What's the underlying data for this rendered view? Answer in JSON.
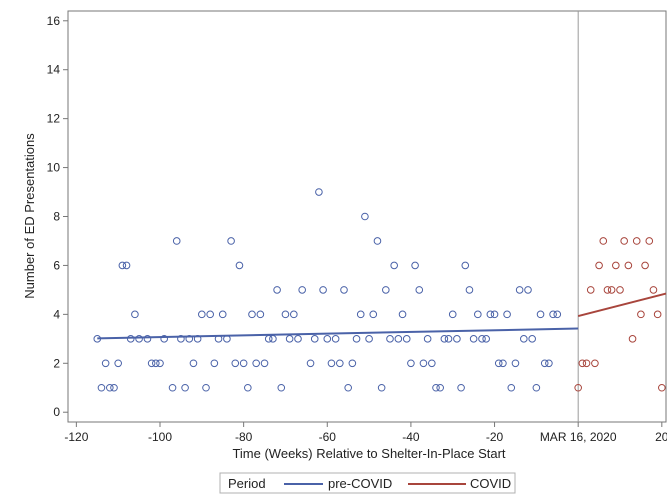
{
  "chart_data": {
    "type": "scatter",
    "xlabel": "Time (Weeks) Relative to Shelter-In-Place Start",
    "ylabel": "Number of ED Presentations",
    "xlim": [
      -122,
      21
    ],
    "ylim": [
      -0.4,
      16.4
    ],
    "xticks": [
      {
        "value": -120,
        "label": "-120"
      },
      {
        "value": -100,
        "label": "-100"
      },
      {
        "value": -80,
        "label": "-80"
      },
      {
        "value": -60,
        "label": "-60"
      },
      {
        "value": -40,
        "label": "-40"
      },
      {
        "value": -20,
        "label": "-20"
      },
      {
        "value": 0,
        "label": "MAR 16, 2020"
      },
      {
        "value": 20,
        "label": "20"
      }
    ],
    "yticks": [
      0,
      2,
      4,
      6,
      8,
      10,
      12,
      14,
      16
    ],
    "reference_line_x": 0,
    "legend": {
      "title": "Period",
      "position": "bottom-center"
    },
    "series": [
      {
        "name": "pre-COVID",
        "color": "#4a62a8",
        "points": [
          [
            -115,
            3
          ],
          [
            -114,
            1
          ],
          [
            -113,
            2
          ],
          [
            -112,
            1
          ],
          [
            -111,
            1
          ],
          [
            -110,
            2
          ],
          [
            -109,
            6
          ],
          [
            -108,
            6
          ],
          [
            -107,
            3
          ],
          [
            -106,
            4
          ],
          [
            -105,
            3
          ],
          [
            -103,
            3
          ],
          [
            -102,
            2
          ],
          [
            -101,
            2
          ],
          [
            -100,
            2
          ],
          [
            -99,
            3
          ],
          [
            -97,
            1
          ],
          [
            -96,
            7
          ],
          [
            -95,
            3
          ],
          [
            -94,
            1
          ],
          [
            -93,
            3
          ],
          [
            -92,
            2
          ],
          [
            -91,
            3
          ],
          [
            -90,
            4
          ],
          [
            -89,
            1
          ],
          [
            -88,
            4
          ],
          [
            -87,
            2
          ],
          [
            -86,
            3
          ],
          [
            -85,
            4
          ],
          [
            -84,
            3
          ],
          [
            -83,
            7
          ],
          [
            -82,
            2
          ],
          [
            -81,
            6
          ],
          [
            -80,
            2
          ],
          [
            -79,
            1
          ],
          [
            -78,
            4
          ],
          [
            -77,
            2
          ],
          [
            -76,
            4
          ],
          [
            -75,
            2
          ],
          [
            -74,
            3
          ],
          [
            -73,
            3
          ],
          [
            -72,
            5
          ],
          [
            -71,
            1
          ],
          [
            -70,
            4
          ],
          [
            -69,
            3
          ],
          [
            -68,
            4
          ],
          [
            -67,
            3
          ],
          [
            -66,
            5
          ],
          [
            -64,
            2
          ],
          [
            -63,
            3
          ],
          [
            -62,
            9
          ],
          [
            -61,
            5
          ],
          [
            -60,
            3
          ],
          [
            -59,
            2
          ],
          [
            -58,
            3
          ],
          [
            -57,
            2
          ],
          [
            -56,
            5
          ],
          [
            -55,
            1
          ],
          [
            -54,
            2
          ],
          [
            -53,
            3
          ],
          [
            -52,
            4
          ],
          [
            -51,
            8
          ],
          [
            -50,
            3
          ],
          [
            -49,
            4
          ],
          [
            -48,
            7
          ],
          [
            -47,
            1
          ],
          [
            -46,
            5
          ],
          [
            -45,
            3
          ],
          [
            -44,
            6
          ],
          [
            -43,
            3
          ],
          [
            -42,
            4
          ],
          [
            -41,
            3
          ],
          [
            -40,
            2
          ],
          [
            -39,
            6
          ],
          [
            -38,
            5
          ],
          [
            -37,
            2
          ],
          [
            -36,
            3
          ],
          [
            -35,
            2
          ],
          [
            -34,
            1
          ],
          [
            -33,
            1
          ],
          [
            -32,
            3
          ],
          [
            -31,
            3
          ],
          [
            -30,
            4
          ],
          [
            -29,
            3
          ],
          [
            -28,
            1
          ],
          [
            -27,
            6
          ],
          [
            -26,
            5
          ],
          [
            -25,
            3
          ],
          [
            -24,
            4
          ],
          [
            -23,
            3
          ],
          [
            -22,
            3
          ],
          [
            -21,
            4
          ],
          [
            -20,
            4
          ],
          [
            -19,
            2
          ],
          [
            -18,
            2
          ],
          [
            -17,
            4
          ],
          [
            -16,
            1
          ],
          [
            -15,
            2
          ],
          [
            -14,
            5
          ],
          [
            -13,
            3
          ],
          [
            -12,
            5
          ],
          [
            -11,
            3
          ],
          [
            -10,
            1
          ],
          [
            -9,
            4
          ],
          [
            -8,
            2
          ],
          [
            -7,
            2
          ],
          [
            -6,
            4
          ],
          [
            -5,
            4
          ]
        ],
        "trend": [
          [
            -115,
            3.02
          ],
          [
            0,
            3.42
          ]
        ]
      },
      {
        "name": "COVID",
        "color": "#a8453c",
        "points": [
          [
            0,
            1
          ],
          [
            1,
            2
          ],
          [
            2,
            2
          ],
          [
            3,
            5
          ],
          [
            4,
            2
          ],
          [
            5,
            6
          ],
          [
            6,
            7
          ],
          [
            7,
            5
          ],
          [
            8,
            5
          ],
          [
            9,
            6
          ],
          [
            10,
            5
          ],
          [
            11,
            7
          ],
          [
            12,
            6
          ],
          [
            13,
            3
          ],
          [
            14,
            7
          ],
          [
            15,
            4
          ],
          [
            16,
            6
          ],
          [
            17,
            7
          ],
          [
            18,
            5
          ],
          [
            19,
            4
          ],
          [
            20,
            1
          ]
        ],
        "trend": [
          [
            0,
            3.93
          ],
          [
            21,
            4.85
          ]
        ]
      }
    ]
  }
}
